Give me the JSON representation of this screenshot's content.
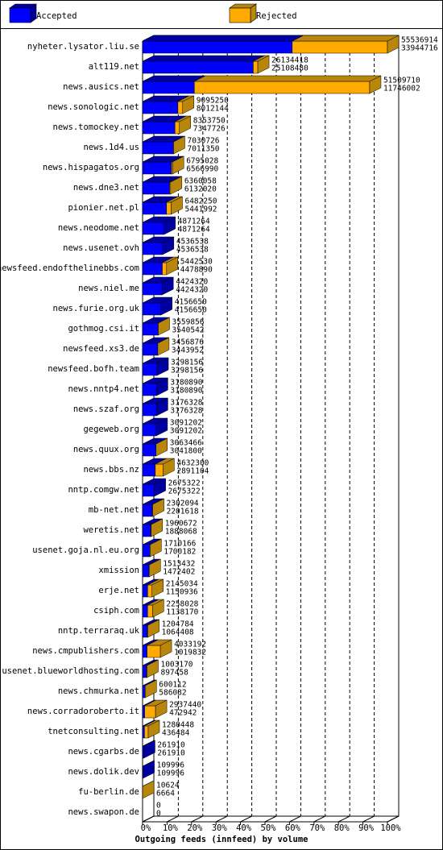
{
  "chart_data": {
    "type": "stacked-bar-3d",
    "orientation": "horizontal",
    "x_label": "Outgoing feeds (innfeed) by volume",
    "categories": [
      "nyheter.lysator.liu.se",
      "alt119.net",
      "news.ausics.net",
      "news.sonologic.net",
      "news.tomockey.net",
      "news.1d4.us",
      "news.hispagatos.org",
      "news.dne3.net",
      "pionier.net.pl",
      "news.neodome.net",
      "news.usenet.ovh",
      "newsfeed.endofthelinebbs.com",
      "news.niel.me",
      "news.furie.org.uk",
      "gothmog.csi.it",
      "newsfeed.xs3.de",
      "newsfeed.bofh.team",
      "news.nntp4.net",
      "news.szaf.org",
      "gegeweb.org",
      "news.quux.org",
      "news.bbs.nz",
      "nntp.comgw.net",
      "mb-net.net",
      "weretis.net",
      "usenet.goja.nl.eu.org",
      "xmission",
      "erje.net",
      "csiph.com",
      "nntp.terraraq.uk",
      "news.cmpublishers.com",
      "usenet.blueworldhosting.com",
      "news.chmurka.net",
      "news.corradoroberto.it",
      "tnetconsulting.net",
      "news.cgarbs.de",
      "news.dolik.dev",
      "fu-berlin.de",
      "news.swapon.de"
    ],
    "series": [
      {
        "name": "Accepted",
        "color": "#0000ff",
        "side_color": "#0000a0",
        "values": [
          33944716,
          25108480,
          11746002,
          8012144,
          7347726,
          7011350,
          6566990,
          6132020,
          5441992,
          4871264,
          4536538,
          4478890,
          4424320,
          4156650,
          3540542,
          3443952,
          3298156,
          3180890,
          3176328,
          3091202,
          3041800,
          2891104,
          2675322,
          2201618,
          1888068,
          1700182,
          1472402,
          1150936,
          1138170,
          1064408,
          1019832,
          897458,
          586082,
          472942,
          436484,
          261910,
          109996,
          6664,
          0
        ]
      },
      {
        "name": "Rejected",
        "color": "#ffaa00",
        "side_color": "#b8860b",
        "values": [
          21592198,
          1025938,
          39763708,
          1083106,
          1006024,
          19376,
          228038,
          228038,
          1040258,
          0,
          0,
          963640,
          0,
          0,
          19314,
          12924,
          0,
          0,
          0,
          0,
          21666,
          1741196,
          0,
          100476,
          72604,
          9984,
          41030,
          994098,
          1119858,
          140376,
          3013360,
          105712,
          14030,
          2464498,
          843964,
          0,
          0,
          3960,
          0
        ]
      }
    ],
    "totals": [
      55536914,
      26134418,
      51509710,
      9095250,
      8353750,
      7030726,
      6795028,
      6360058,
      6482250,
      4871264,
      4536538,
      5442530,
      4424320,
      4156650,
      3559856,
      3456876,
      3298156,
      3180890,
      3176328,
      3091202,
      3063466,
      4632300,
      2675322,
      2302094,
      1960672,
      1710166,
      1513432,
      2145034,
      2258028,
      1204784,
      4033192,
      1003170,
      600112,
      2937440,
      1280448,
      261910,
      109996,
      10624,
      0
    ],
    "xlim": [
      0,
      55536914
    ],
    "xticks": [
      {
        "value": 0,
        "label": "0%"
      },
      {
        "value": 5553691.4,
        "label": "10%"
      },
      {
        "value": 11107382.8,
        "label": "20%"
      },
      {
        "value": 16661074.2,
        "label": "30%"
      },
      {
        "value": 22214765.6,
        "label": "40%"
      },
      {
        "value": 27768457,
        "label": "50%"
      },
      {
        "value": 33322148.4,
        "label": "60%"
      },
      {
        "value": 38875839.8,
        "label": "70%"
      },
      {
        "value": 44429531.2,
        "label": "80%"
      },
      {
        "value": 49983222.6,
        "label": "90%"
      },
      {
        "value": 55536914,
        "label": "100%"
      }
    ],
    "grid": true
  }
}
